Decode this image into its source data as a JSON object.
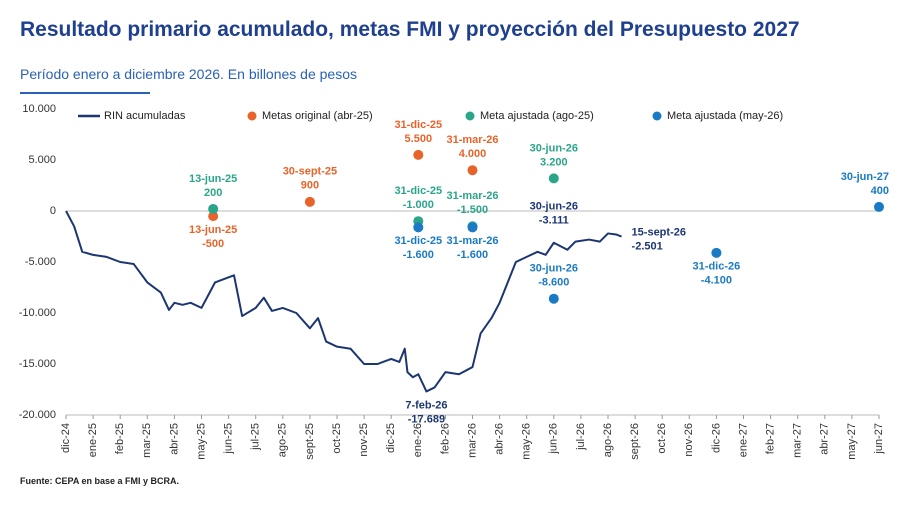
{
  "chart_data": {
    "type": "line",
    "title": "Resultado primario acumulado, metas FMI y proyección del Presupuesto 2027",
    "subtitle": "Período enero a diciembre 2026. En billones de pesos",
    "source": "Fuente: CEPA en base a  FMI y BCRA.",
    "xlim": [
      0,
      30
    ],
    "xticks": [
      {
        "value": 0,
        "label": "dic-24"
      },
      {
        "value": 1,
        "label": "ene-25"
      },
      {
        "value": 2,
        "label": "feb-25"
      },
      {
        "value": 3,
        "label": "mar-25"
      },
      {
        "value": 4,
        "label": "abr-25"
      },
      {
        "value": 5,
        "label": "may-25"
      },
      {
        "value": 6,
        "label": "jun-25"
      },
      {
        "value": 7,
        "label": "jul-25"
      },
      {
        "value": 8,
        "label": "ago-25"
      },
      {
        "value": 9,
        "label": "sept-25"
      },
      {
        "value": 10,
        "label": "oct-25"
      },
      {
        "value": 11,
        "label": "nov-25"
      },
      {
        "value": 12,
        "label": "dic-25"
      },
      {
        "value": 13,
        "label": "ene-26"
      },
      {
        "value": 14,
        "label": "feb-26"
      },
      {
        "value": 15,
        "label": "mar-26"
      },
      {
        "value": 16,
        "label": "abr-26"
      },
      {
        "value": 17,
        "label": "may-26"
      },
      {
        "value": 18,
        "label": "jun-26"
      },
      {
        "value": 19,
        "label": "jul-26"
      },
      {
        "value": 20,
        "label": "ago-26"
      },
      {
        "value": 21,
        "label": "sept-26"
      },
      {
        "value": 22,
        "label": "oct-26"
      },
      {
        "value": 23,
        "label": "nov-26"
      },
      {
        "value": 24,
        "label": "dic-26"
      },
      {
        "value": 25,
        "label": "ene-27"
      },
      {
        "value": 26,
        "label": "feb-27"
      },
      {
        "value": 27,
        "label": "mar-27"
      },
      {
        "value": 28,
        "label": "abr-27"
      },
      {
        "value": 29,
        "label": "may-27"
      },
      {
        "value": 30,
        "label": "jun-27"
      }
    ],
    "ylim": [
      -20000,
      10000
    ],
    "yticks": [
      {
        "value": 10000,
        "label": "10.000"
      },
      {
        "value": 5000,
        "label": "5.000"
      },
      0,
      {
        "value": -5000,
        "label": "-5.000"
      },
      {
        "value": -10000,
        "label": "-10.000"
      },
      {
        "value": -15000,
        "label": "-15.000"
      },
      {
        "value": -20000,
        "label": "-20.000"
      }
    ],
    "grid": false,
    "series": [
      {
        "name": "RIN acumuladas",
        "type": "line",
        "color": "#1c3672",
        "x": [
          0,
          0.3,
          0.6,
          1,
          1.5,
          2,
          2.5,
          3,
          3.5,
          3.8,
          4,
          4.3,
          4.6,
          5,
          5.3,
          5.5,
          6,
          6.2,
          6.5,
          7,
          7.3,
          7.6,
          8,
          8.5,
          9,
          9.3,
          9.6,
          10,
          10.5,
          11,
          11.5,
          12,
          12.3,
          12.5,
          12.6,
          12.8,
          13,
          13.3,
          13.6,
          14,
          14.5,
          15,
          15.3,
          15.7,
          16,
          16.3,
          16.6,
          17,
          17.4,
          17.7,
          18,
          18.5,
          18.8,
          19.3,
          19.7,
          20,
          20.3,
          20.5
        ],
        "values": [
          0,
          -1500,
          -4000,
          -4300,
          -4500,
          -5000,
          -5200,
          -7000,
          -8000,
          -9700,
          -9000,
          -9200,
          -9000,
          -9500,
          -8000,
          -7000,
          -6500,
          -6300,
          -10300,
          -9500,
          -8500,
          -9800,
          -9500,
          -10000,
          -11500,
          -10500,
          -12800,
          -13300,
          -13500,
          -15000,
          -15000,
          -14500,
          -14800,
          -13500,
          -15800,
          -16300,
          -16000,
          -17689,
          -17300,
          -15800,
          -16000,
          -15300,
          -12000,
          -10500,
          -9000,
          -7000,
          -5000,
          -4500,
          -4000,
          -4300,
          -3111,
          -3800,
          -3000,
          -2800,
          -3000,
          -2200,
          -2300,
          -2501
        ]
      },
      {
        "name": "Metas original (abr-25)",
        "type": "scatter",
        "color": "#e8632a",
        "x": [
          5.43,
          9,
          13,
          15
        ],
        "values": [
          -500,
          900,
          5500,
          4000
        ],
        "dates": [
          "13-jun-25",
          "30-sept-25",
          "31-dic-25",
          "31-mar-26"
        ],
        "value_labels": [
          "-500",
          "900",
          "5.500",
          "4.000"
        ]
      },
      {
        "name": "Meta ajustada (ago-25)",
        "type": "scatter",
        "color": "#2aa58a",
        "x": [
          5.43,
          13,
          15,
          18
        ],
        "values": [
          200,
          -1000,
          -1500,
          3200
        ],
        "dates": [
          "13-jun-25",
          "31-dic-25",
          "31-mar-26",
          "30-jun-26"
        ],
        "value_labels": [
          "200",
          "-1.000",
          "-1.500",
          "3.200"
        ]
      },
      {
        "name": "Meta ajustada (may-26)",
        "type": "scatter",
        "color": "#1a7ac4",
        "x": [
          13,
          15,
          18,
          24,
          30
        ],
        "values": [
          -1600,
          -1600,
          -8600,
          -4100,
          400
        ],
        "dates": [
          "31-dic-25",
          "31-mar-26",
          "30-jun-26",
          "31-dic-26",
          "30-jun-27"
        ],
        "value_labels": [
          "-1.600",
          "-1.600",
          "-8.600",
          "-4.100",
          "400"
        ]
      }
    ],
    "annotations": [
      {
        "x": 18,
        "value": -3111,
        "date": "30-jun-26",
        "value_label": "-3.111"
      },
      {
        "x": 20.5,
        "value": -2501,
        "date": "15-sept-26",
        "value_label": "-2.501"
      },
      {
        "x": 13.3,
        "value": -17689,
        "date": "7-feb-26",
        "value_label": "-17.689"
      }
    ]
  }
}
